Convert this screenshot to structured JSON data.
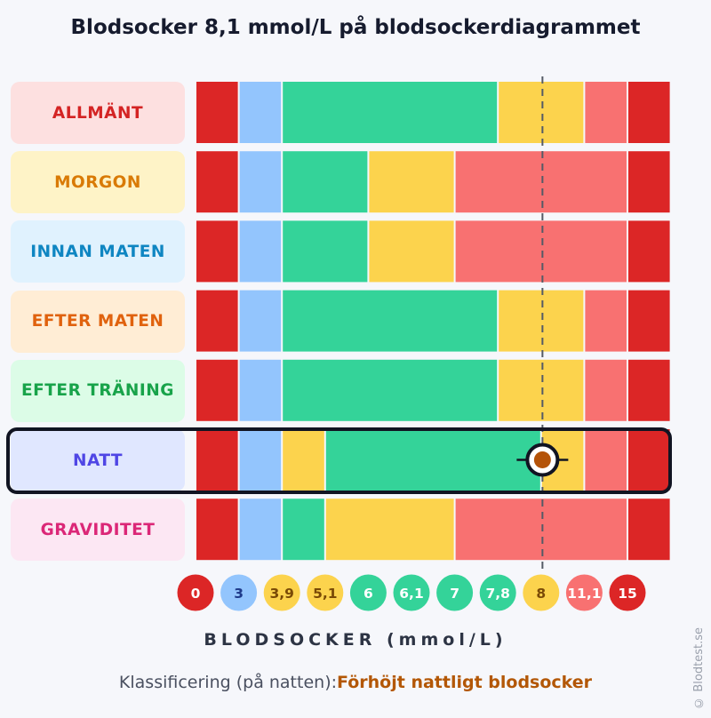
{
  "title": "Blodsocker 8,1 mmol/L på blodsockerdiagrammet",
  "chart_data": {
    "type": "bar",
    "title": "Blodsocker 8,1 mmol/L på blodsockerdiagrammet",
    "xlabel": "BLODSOCKER (mmol/L)",
    "ticks": [
      "0",
      "3",
      "3,9",
      "5,1",
      "6",
      "6,1",
      "7",
      "7,8",
      "8",
      "11,1",
      "15"
    ],
    "tick_colors": [
      "#dc2626",
      "#93c5fd",
      "#fcd34d",
      "#fcd34d",
      "#34d399",
      "#34d399",
      "#34d399",
      "#34d399",
      "#fcd34d",
      "#f87171",
      "#dc2626"
    ],
    "rows": [
      {
        "label": "ALLMÄNT",
        "text_color": "#d42424",
        "bg": "#fde0e0",
        "segments": [
          [
            "0",
            "3",
            "#dc2626"
          ],
          [
            "3",
            "3,9",
            "#93c5fd"
          ],
          [
            "3,9",
            "7,8",
            "#34d399"
          ],
          [
            "7,8",
            "11,1",
            "#fcd34d"
          ],
          [
            "11,1",
            "15",
            "#f87171"
          ],
          [
            "15",
            "",
            "#dc2626"
          ]
        ]
      },
      {
        "label": "MORGON",
        "text_color": "#d97a06",
        "bg": "#fef3c7",
        "segments": [
          [
            "0",
            "3",
            "#dc2626"
          ],
          [
            "3",
            "3,9",
            "#93c5fd"
          ],
          [
            "3,9",
            "6",
            "#34d399"
          ],
          [
            "6",
            "7",
            "#fcd34d"
          ],
          [
            "7",
            "15",
            "#f87171"
          ],
          [
            "15",
            "",
            "#dc2626"
          ]
        ]
      },
      {
        "label": "INNAN MATEN",
        "text_color": "#0f86c2",
        "bg": "#e0f2fe",
        "segments": [
          [
            "0",
            "3",
            "#dc2626"
          ],
          [
            "3",
            "3,9",
            "#93c5fd"
          ],
          [
            "3,9",
            "6",
            "#34d399"
          ],
          [
            "6",
            "7",
            "#fcd34d"
          ],
          [
            "7",
            "15",
            "#f87171"
          ],
          [
            "15",
            "",
            "#dc2626"
          ]
        ]
      },
      {
        "label": "EFTER MATEN",
        "text_color": "#e0620e",
        "bg": "#ffedd5",
        "segments": [
          [
            "0",
            "3",
            "#dc2626"
          ],
          [
            "3",
            "3,9",
            "#93c5fd"
          ],
          [
            "3,9",
            "7,8",
            "#34d399"
          ],
          [
            "7,8",
            "11,1",
            "#fcd34d"
          ],
          [
            "11,1",
            "15",
            "#f87171"
          ],
          [
            "15",
            "",
            "#dc2626"
          ]
        ]
      },
      {
        "label": "EFTER TRÄNING",
        "text_color": "#18a34a",
        "bg": "#dcfce7",
        "segments": [
          [
            "0",
            "3",
            "#dc2626"
          ],
          [
            "3",
            "3,9",
            "#93c5fd"
          ],
          [
            "3,9",
            "7,8",
            "#34d399"
          ],
          [
            "7,8",
            "11,1",
            "#fcd34d"
          ],
          [
            "11,1",
            "15",
            "#f87171"
          ],
          [
            "15",
            "",
            "#dc2626"
          ]
        ]
      },
      {
        "label": "NATT",
        "text_color": "#4f46e5",
        "bg": "#e0e7ff",
        "segments": [
          [
            "0",
            "3",
            "#dc2626"
          ],
          [
            "3",
            "3,9",
            "#93c5fd"
          ],
          [
            "3,9",
            "5,1",
            "#fcd34d"
          ],
          [
            "5,1",
            "8",
            "#34d399"
          ],
          [
            "8",
            "11,1",
            "#fcd34d"
          ],
          [
            "11,1",
            "15",
            "#f87171"
          ],
          [
            "15",
            "",
            "#dc2626"
          ]
        ]
      },
      {
        "label": "GRAVIDITET",
        "text_color": "#db2777",
        "bg": "#fce7f3",
        "segments": [
          [
            "0",
            "3",
            "#dc2626"
          ],
          [
            "3",
            "3,9",
            "#93c5fd"
          ],
          [
            "3,9",
            "5,1",
            "#34d399"
          ],
          [
            "5,1",
            "7",
            "#fcd34d"
          ],
          [
            "7",
            "15",
            "#f87171"
          ],
          [
            "15",
            "",
            "#dc2626"
          ]
        ]
      }
    ],
    "value": 8.1,
    "highlighted_row": "NATT",
    "marker_color": "#b45309"
  },
  "classification": {
    "label": "Klassificering (på natten):",
    "value": "Förhöjt nattligt blodsocker"
  },
  "watermark": "© Blodtest.se"
}
